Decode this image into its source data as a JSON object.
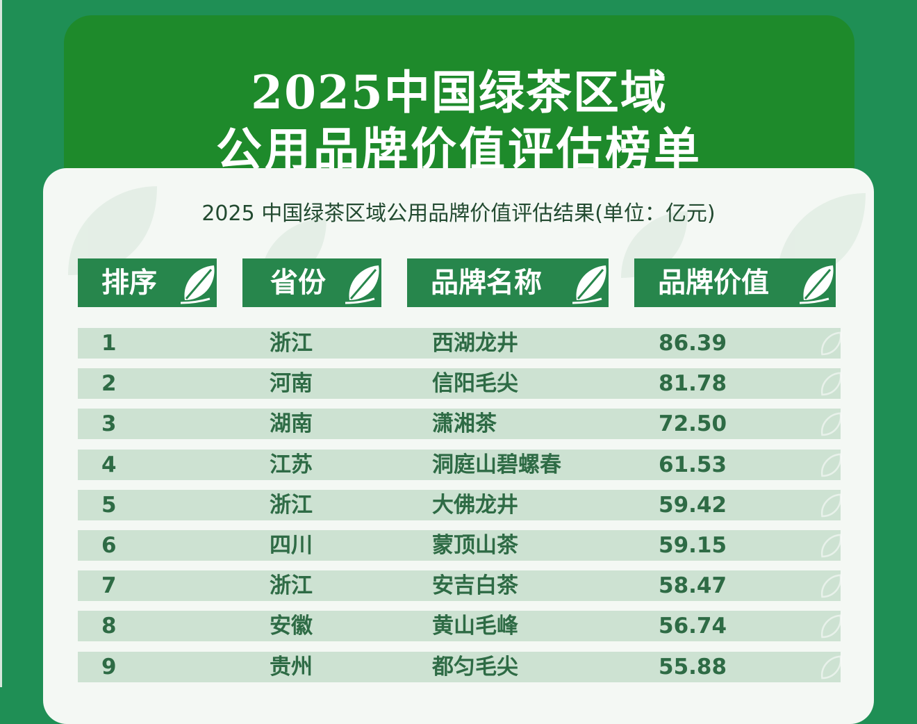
{
  "header": {
    "title_line1": "2025中国绿茶区域",
    "title_line2": "公用品牌价值评估榜单"
  },
  "table": {
    "subtitle": "2025 中国绿茶区域公用品牌价值评估结果(单位：亿元)",
    "columns": [
      "排序",
      "省份",
      "品牌名称",
      "品牌价值"
    ],
    "rows": [
      {
        "rank": "1",
        "province": "浙江",
        "brand": "西湖龙井",
        "value": "86.39"
      },
      {
        "rank": "2",
        "province": "河南",
        "brand": "信阳毛尖",
        "value": "81.78"
      },
      {
        "rank": "3",
        "province": "湖南",
        "brand": "潇湘茶",
        "value": "72.50"
      },
      {
        "rank": "4",
        "province": "江苏",
        "brand": "洞庭山碧螺春",
        "value": "61.53"
      },
      {
        "rank": "5",
        "province": "浙江",
        "brand": "大佛龙井",
        "value": "59.42"
      },
      {
        "rank": "6",
        "province": "四川",
        "brand": "蒙顶山茶",
        "value": "59.15"
      },
      {
        "rank": "7",
        "province": "浙江",
        "brand": "安吉白茶",
        "value": "58.47"
      },
      {
        "rank": "8",
        "province": "安徽",
        "brand": "黄山毛峰",
        "value": "56.74"
      },
      {
        "rank": "9",
        "province": "贵州",
        "brand": "都匀毛尖",
        "value": "55.88"
      }
    ]
  },
  "colors": {
    "background": "#1f8f55",
    "banner": "#1e8a2b",
    "header_cell": "#27864c",
    "row_fill": "#cde2d2",
    "row_text": "#2e6b45"
  },
  "icons": [
    "tea-leaf-icon"
  ]
}
